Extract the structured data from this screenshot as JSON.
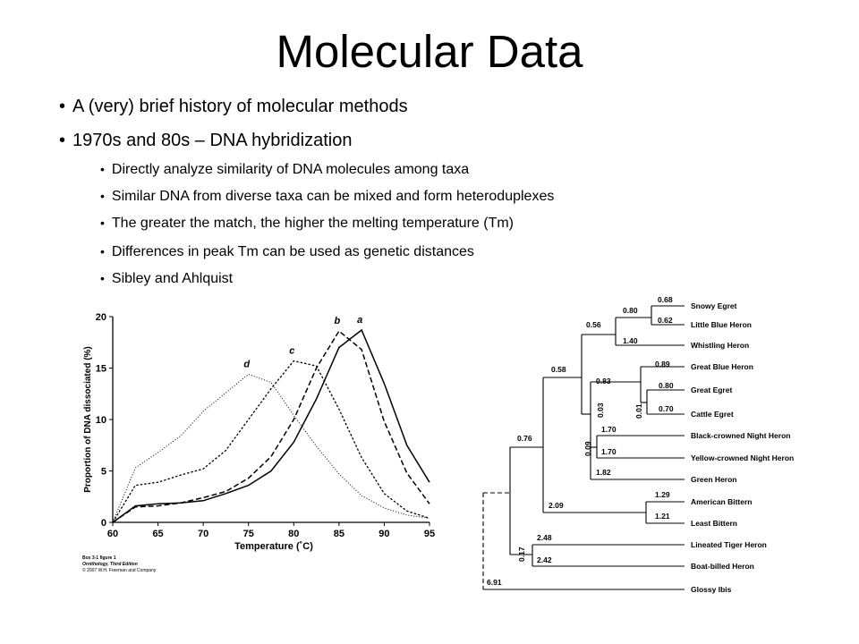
{
  "slide": {
    "title": "Molecular Data",
    "bullets": [
      {
        "level": 1,
        "text": "A (very) brief history of molecular methods"
      },
      {
        "level": 1,
        "text": "1970s and 80s – DNA hybridization"
      },
      {
        "level": 2,
        "text": "Directly analyze similarity of DNA molecules among taxa"
      },
      {
        "level": 2,
        "text": "Similar DNA from diverse taxa can be mixed and form heteroduplexes"
      },
      {
        "level": 2,
        "text": "The greater the match, the higher the melting temperature (Tm)"
      },
      {
        "level": 2,
        "text": "Differences in peak Tm can be used as genetic distances"
      },
      {
        "level": 2,
        "text": "Sibley and Ahlquist"
      }
    ]
  },
  "chart_data": {
    "type": "line",
    "xlabel": "Temperature (˚C)",
    "ylabel": "Proportion of DNA dissociated (%)",
    "xlim": [
      60,
      95
    ],
    "ylim": [
      0,
      20
    ],
    "xticks": [
      "60",
      "65",
      "70",
      "75",
      "80",
      "85",
      "90",
      "95"
    ],
    "yticks": [
      "0",
      "5",
      "10",
      "15",
      "20"
    ],
    "grid": false,
    "series": [
      {
        "name": "a",
        "style": "solid",
        "x": [
          60,
          62.5,
          65,
          67.5,
          70,
          72.5,
          75,
          77.5,
          80,
          82.5,
          85,
          87.5,
          90,
          92.5,
          95
        ],
        "y": [
          0,
          1.6,
          1.8,
          1.9,
          2.1,
          2.8,
          3.6,
          5.0,
          7.8,
          12.0,
          17.0,
          18.7,
          13.5,
          7.5,
          3.9
        ]
      },
      {
        "name": "b",
        "style": "dashed",
        "x": [
          60,
          62.5,
          65,
          67.5,
          70,
          72.5,
          75,
          77.5,
          80,
          82.5,
          85,
          87.5,
          90,
          92.5,
          95
        ],
        "y": [
          0,
          1.5,
          1.6,
          1.9,
          2.4,
          3.0,
          4.3,
          6.4,
          10.0,
          15.0,
          18.6,
          16.8,
          9.8,
          4.8,
          1.8
        ]
      },
      {
        "name": "c",
        "style": "dashdot",
        "x": [
          60,
          62.5,
          65,
          67.5,
          70,
          72.5,
          75,
          77.5,
          80,
          82.5,
          85,
          87.5,
          90,
          92.5,
          95
        ],
        "y": [
          0,
          3.6,
          3.9,
          4.6,
          5.2,
          7.0,
          10.0,
          13.0,
          15.7,
          15.2,
          11.0,
          6.3,
          2.8,
          1.1,
          0.4
        ]
      },
      {
        "name": "d",
        "style": "dotted",
        "x": [
          60,
          62.5,
          65,
          67.5,
          70,
          72.5,
          75,
          77.5,
          80,
          82.5,
          85,
          87.5,
          90,
          92.5,
          95
        ],
        "y": [
          0,
          5.3,
          6.8,
          8.4,
          10.8,
          12.6,
          14.4,
          13.6,
          10.4,
          7.4,
          4.7,
          2.6,
          1.4,
          0.7,
          0.4
        ]
      }
    ],
    "caption": [
      "Box 3-1 figure 1",
      "Ornithology, Third Edition",
      "© 2007 W.H. Freeman and Company"
    ]
  },
  "tree": {
    "taxa": [
      "Snowy Egret",
      "Little Blue Heron",
      "Whistling Heron",
      "Great Blue Heron",
      "Great Egret",
      "Cattle Egret",
      "Black-crowned Night Heron",
      "Yellow-crowned Night Heron",
      "Green Heron",
      "American Bittern",
      "Least Bittern",
      "Lineated Tiger Heron",
      "Boat-billed Heron",
      "Glossy Ibis"
    ],
    "branch_labels": [
      "0.68",
      "0.62",
      "0.80",
      "1.40",
      "0.56",
      "0.89",
      "0.80",
      "0.70",
      "0.01",
      "0.83",
      "0.03",
      "1.70",
      "1.70",
      "0.09",
      "1.82",
      "0.58",
      "1.29",
      "1.21",
      "2.09",
      "0.76",
      "2.48",
      "2.42",
      "0.17",
      "6.91"
    ]
  }
}
